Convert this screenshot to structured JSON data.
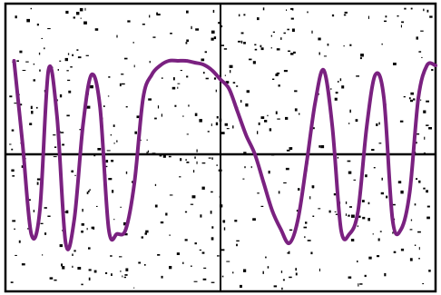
{
  "colors": {
    "background": "#ffffff",
    "ink": "#000000",
    "curve": "#7a2180"
  },
  "chart_data": {
    "type": "line",
    "title": "",
    "xlabel": "",
    "ylabel": "",
    "xlim": [
      0,
      1
    ],
    "ylim": [
      -1.25,
      1.25
    ],
    "grid": false,
    "legend": "none",
    "series": [
      {
        "name": "",
        "x": [
          0.02,
          0.04,
          0.06,
          0.08,
          0.1,
          0.12,
          0.14,
          0.16,
          0.18,
          0.2,
          0.22,
          0.24,
          0.26,
          0.28,
          0.3,
          0.32,
          0.34,
          0.36,
          0.38,
          0.4,
          0.42,
          0.44,
          0.46,
          0.48,
          0.5,
          0.52,
          0.54,
          0.56,
          0.58,
          0.6,
          0.62,
          0.64,
          0.66,
          0.68,
          0.7,
          0.72,
          0.74,
          0.76,
          0.78,
          0.8,
          0.82,
          0.84,
          0.86,
          0.88,
          0.9,
          0.92,
          0.94,
          0.96,
          0.98,
          1.0
        ],
        "y": [
          1.0,
          0.1,
          -0.85,
          -0.6,
          0.9,
          0.4,
          -0.95,
          -0.7,
          0.3,
          0.85,
          0.5,
          -0.8,
          -0.85,
          -0.8,
          -0.3,
          0.6,
          0.85,
          0.95,
          1.0,
          1.0,
          1.0,
          0.98,
          0.96,
          0.9,
          0.8,
          0.7,
          0.45,
          0.2,
          0.0,
          -0.3,
          -0.6,
          -0.8,
          -0.95,
          -0.7,
          -0.1,
          0.55,
          0.9,
          0.3,
          -0.8,
          -0.85,
          -0.6,
          0.3,
          0.85,
          0.6,
          -0.7,
          -0.8,
          -0.4,
          0.6,
          0.95,
          0.95
        ]
      }
    ]
  }
}
